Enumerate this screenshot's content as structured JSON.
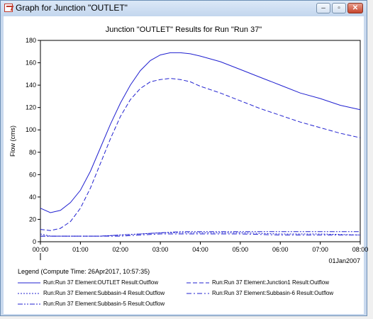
{
  "window": {
    "title": "Graph for Junction \"OUTLET\"",
    "buttons": {
      "minimize": "–",
      "maximize": "▫",
      "close": "✕"
    }
  },
  "chart_data": {
    "type": "line",
    "title": "Junction \"OUTLET\" Results for Run \"Run 37\"",
    "ylabel": "Flow (cms)",
    "xlabel": "",
    "x_date_label": "01Jan2007",
    "xlim": [
      "00:00",
      "08:00"
    ],
    "ylim": [
      0,
      180
    ],
    "x_ticks": [
      "00:00",
      "01:00",
      "02:00",
      "03:00",
      "04:00",
      "05:00",
      "06:00",
      "07:00",
      "08:00"
    ],
    "y_ticks": [
      0,
      20,
      40,
      60,
      80,
      100,
      120,
      140,
      160,
      180
    ],
    "grid": false,
    "series": [
      {
        "name": "Run:Run 37 Element:OUTLET Result:Outflow",
        "style": "solid",
        "color": "#2020d0",
        "x": [
          "00:00",
          "00:15",
          "00:30",
          "00:45",
          "01:00",
          "01:15",
          "01:30",
          "01:45",
          "02:00",
          "02:15",
          "02:30",
          "02:45",
          "03:00",
          "03:15",
          "03:30",
          "03:45",
          "04:00",
          "04:30",
          "05:00",
          "05:30",
          "06:00",
          "06:30",
          "07:00",
          "07:30",
          "08:00"
        ],
        "y": [
          30,
          26,
          28,
          35,
          46,
          63,
          84,
          105,
          124,
          140,
          153,
          162,
          167,
          169,
          169,
          168,
          166,
          161,
          154,
          147,
          140,
          133,
          128,
          122,
          118
        ]
      },
      {
        "name": "Run:Run 37 Element:Junction1 Result:Outflow",
        "style": "dashed",
        "color": "#2020d0",
        "x": [
          "00:00",
          "00:15",
          "00:30",
          "00:45",
          "01:00",
          "01:15",
          "01:30",
          "01:45",
          "02:00",
          "02:15",
          "02:30",
          "02:45",
          "03:00",
          "03:15",
          "03:30",
          "03:45",
          "04:00",
          "04:30",
          "05:00",
          "05:30",
          "06:00",
          "06:30",
          "07:00",
          "07:30",
          "08:00"
        ],
        "y": [
          11,
          10,
          12,
          18,
          30,
          48,
          70,
          92,
          112,
          127,
          137,
          143,
          145,
          146,
          145,
          143,
          139,
          133,
          126,
          119,
          113,
          107,
          102,
          97,
          93
        ]
      },
      {
        "name": "Run:Run 37 Element:Subbasin-4 Result:Outflow",
        "style": "dotted",
        "color": "#2020d0",
        "x": [
          "00:00",
          "00:15",
          "00:30",
          "01:00",
          "01:30",
          "02:00",
          "02:30",
          "03:00",
          "03:30",
          "04:00",
          "05:00",
          "06:00",
          "07:00",
          "08:00"
        ],
        "y": [
          7,
          5,
          5,
          5,
          5,
          6,
          7,
          8,
          8,
          8,
          8,
          7,
          7,
          6
        ]
      },
      {
        "name": "Run:Run 37 Element:Subbasin-6 Result:Outflow",
        "style": "dashdot",
        "color": "#2020d0",
        "x": [
          "00:00",
          "00:15",
          "00:30",
          "01:00",
          "01:30",
          "02:00",
          "02:30",
          "03:00",
          "03:30",
          "04:00",
          "05:00",
          "06:00",
          "07:00",
          "08:00"
        ],
        "y": [
          5,
          5,
          5,
          5,
          5,
          5,
          6,
          7,
          7,
          7,
          7,
          6,
          6,
          6
        ]
      },
      {
        "name": "Run:Run 37 Element:Subbasin-5 Result:Outflow",
        "style": "dashdotdot",
        "color": "#2020d0",
        "x": [
          "00:00",
          "00:15",
          "00:30",
          "01:00",
          "01:30",
          "02:00",
          "02:30",
          "03:00",
          "03:30",
          "04:00",
          "05:00",
          "06:00",
          "07:00",
          "08:00"
        ],
        "y": [
          5,
          5,
          5,
          5,
          5,
          6,
          7,
          8,
          9,
          9,
          9,
          9,
          9,
          9
        ]
      }
    ],
    "legend": {
      "placement": "bottom",
      "title": "Legend (Compute Time: 26Apr2017, 10:57:35)"
    }
  }
}
